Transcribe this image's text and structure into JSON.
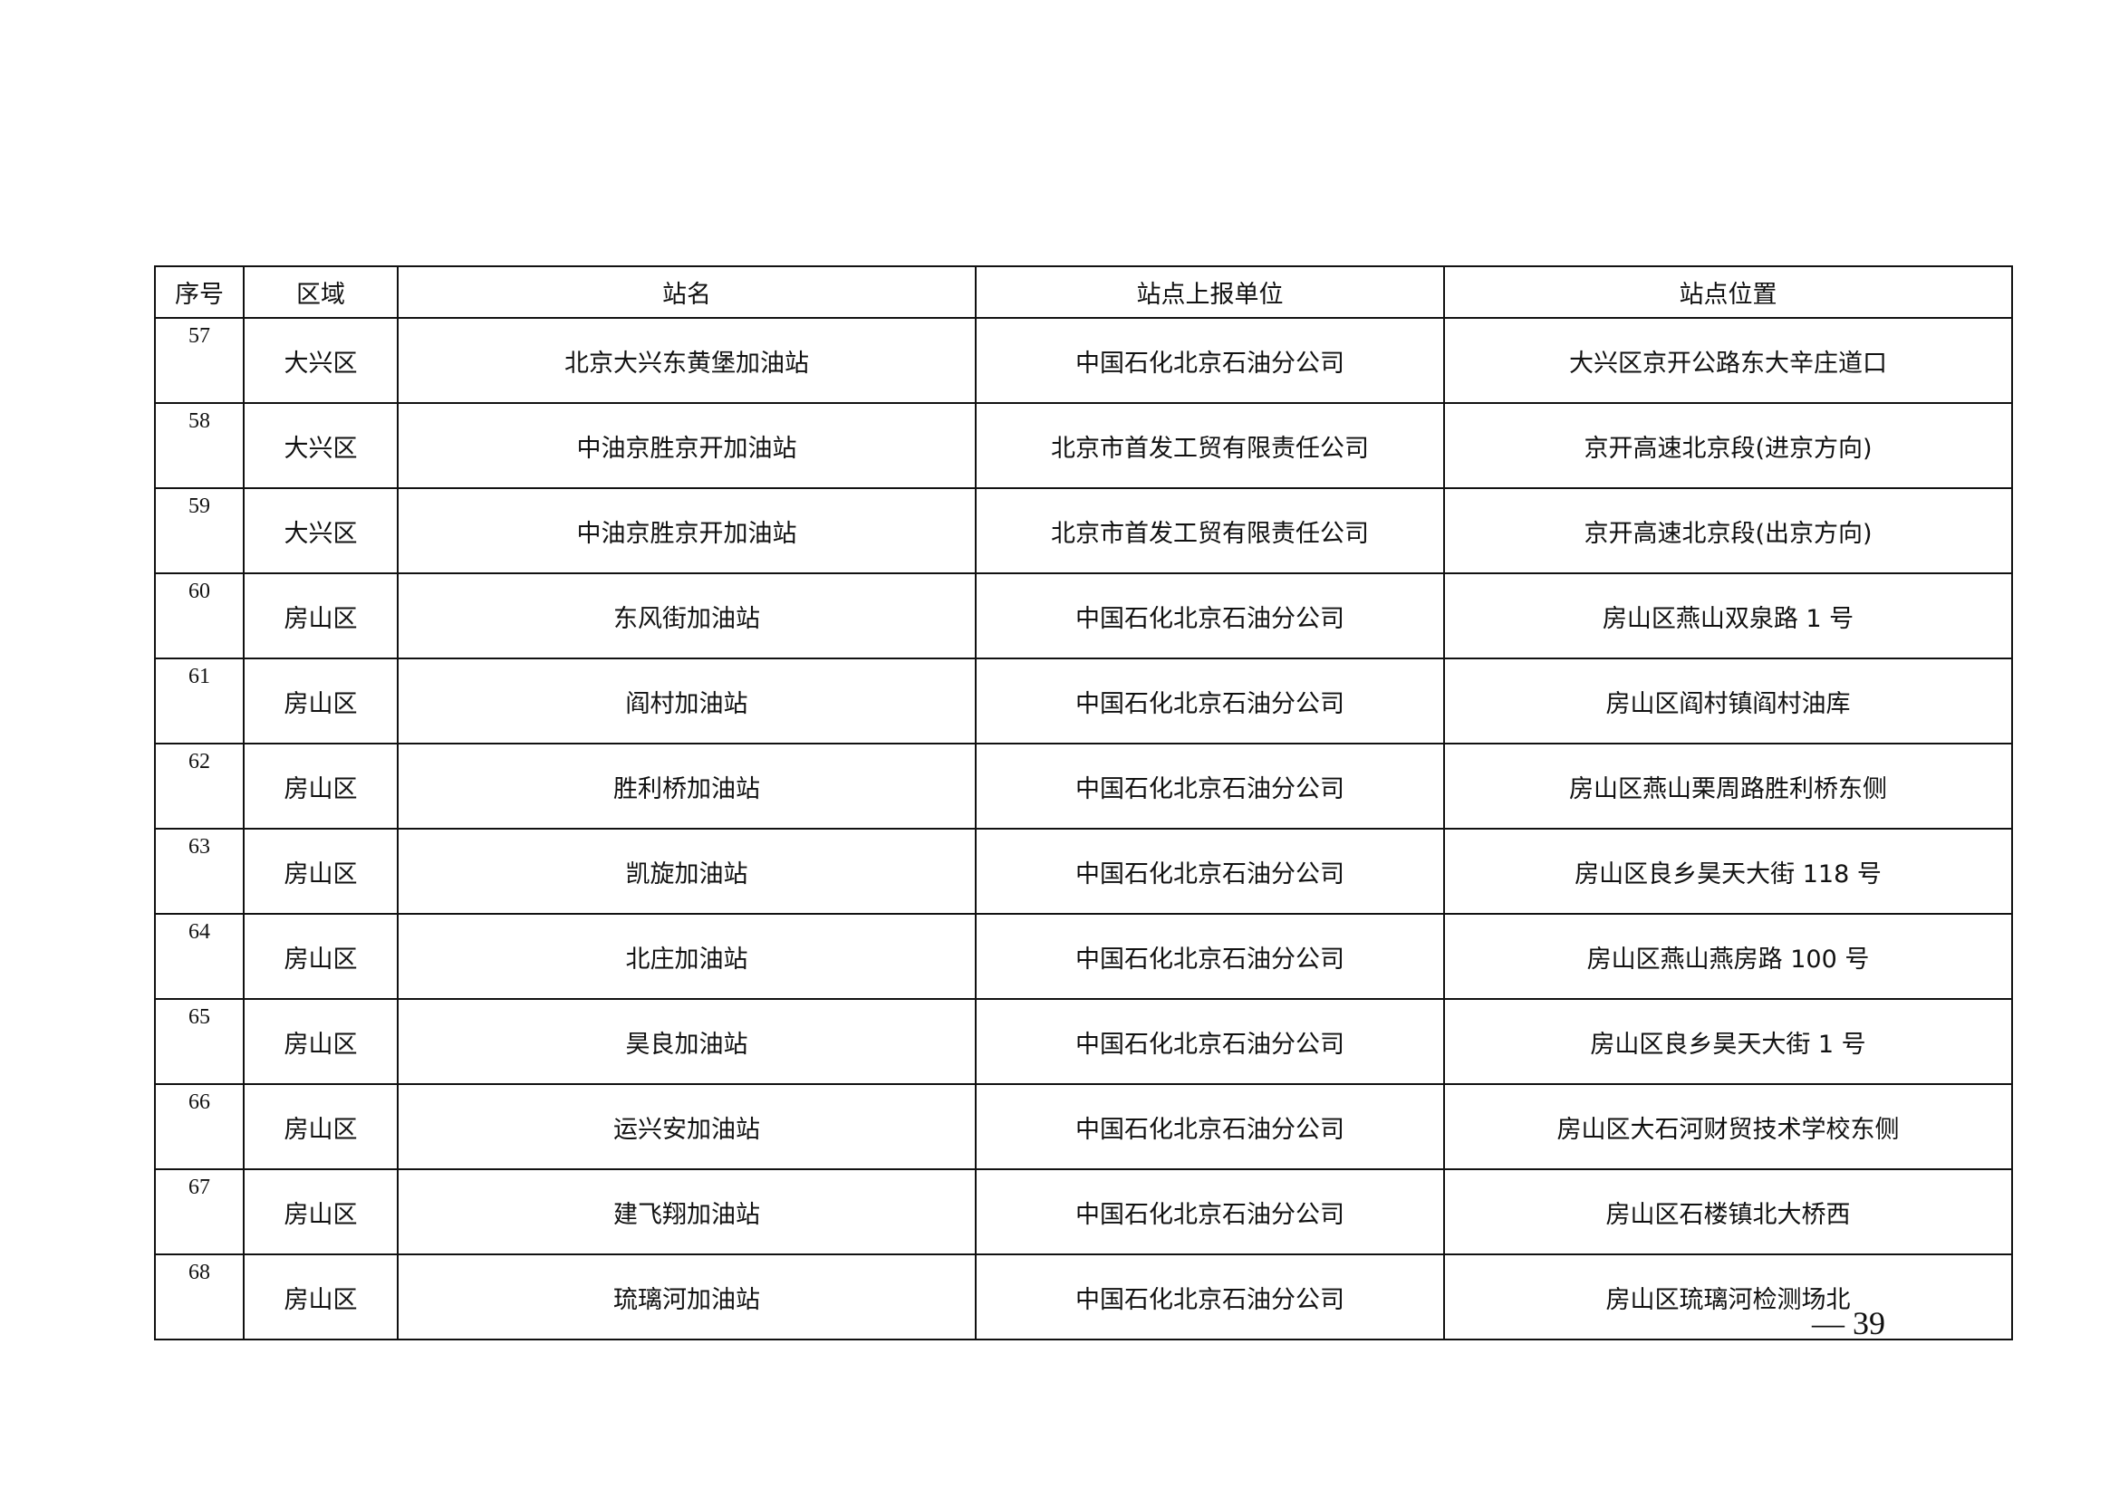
{
  "table": {
    "headers": [
      "序号",
      "区域",
      "站名",
      "站点上报单位",
      "站点位置"
    ],
    "rows": [
      [
        "57",
        "大兴区",
        "北京大兴东黄堡加油站",
        "中国石化北京石油分公司",
        "大兴区京开公路东大辛庄道口"
      ],
      [
        "58",
        "大兴区",
        "中油京胜京开加油站",
        "北京市首发工贸有限责任公司",
        "京开高速北京段(进京方向)"
      ],
      [
        "59",
        "大兴区",
        "中油京胜京开加油站",
        "北京市首发工贸有限责任公司",
        "京开高速北京段(出京方向)"
      ],
      [
        "60",
        "房山区",
        "东风街加油站",
        "中国石化北京石油分公司",
        "房山区燕山双泉路 1 号"
      ],
      [
        "61",
        "房山区",
        "阎村加油站",
        "中国石化北京石油分公司",
        "房山区阎村镇阎村油库"
      ],
      [
        "62",
        "房山区",
        "胜利桥加油站",
        "中国石化北京石油分公司",
        "房山区燕山栗周路胜利桥东侧"
      ],
      [
        "63",
        "房山区",
        "凯旋加油站",
        "中国石化北京石油分公司",
        "房山区良乡昊天大街 118 号"
      ],
      [
        "64",
        "房山区",
        "北庄加油站",
        "中国石化北京石油分公司",
        "房山区燕山燕房路 100 号"
      ],
      [
        "65",
        "房山区",
        "昊良加油站",
        "中国石化北京石油分公司",
        "房山区良乡昊天大街 1 号"
      ],
      [
        "66",
        "房山区",
        "运兴安加油站",
        "中国石化北京石油分公司",
        "房山区大石河财贸技术学校东侧"
      ],
      [
        "67",
        "房山区",
        "建飞翔加油站",
        "中国石化北京石油分公司",
        "房山区石楼镇北大桥西"
      ],
      [
        "68",
        "房山区",
        "琉璃河加油站",
        "中国石化北京石油分公司",
        "房山区琉璃河检测场北"
      ]
    ]
  },
  "page_number": "— 39"
}
